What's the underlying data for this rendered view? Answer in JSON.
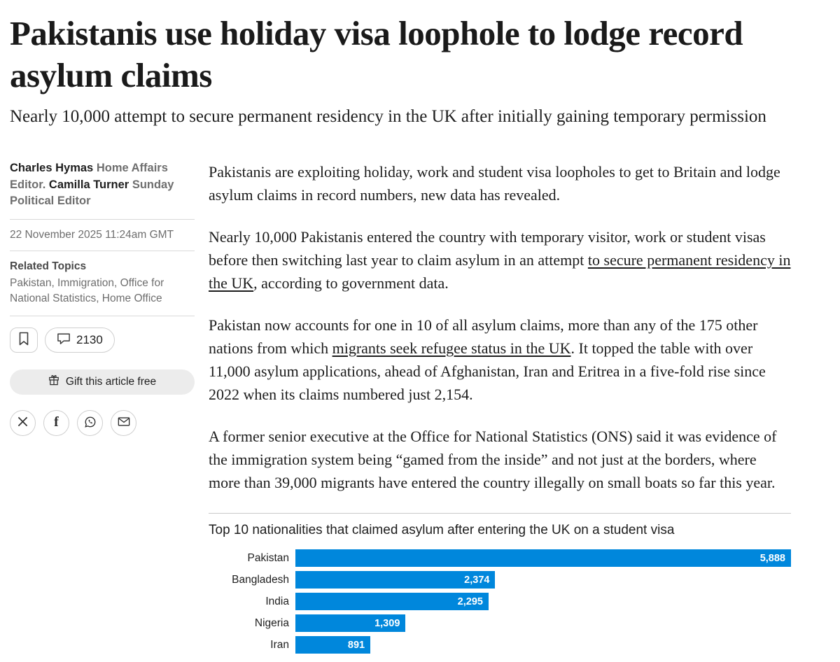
{
  "header": {
    "title": "Pakistanis use holiday visa loophole to lodge record asylum claims",
    "subtitle": "Nearly 10,000 attempt to secure permanent residency in the UK after initially gaining temporary permission"
  },
  "sidebar": {
    "byline": {
      "author1": "Charles Hymas",
      "role1": " Home Affairs Editor. ",
      "author2": "Camilla Turner",
      "role2": " Sunday Political Editor"
    },
    "date": "22 November 2025 11:24am GMT",
    "related_label": "Related Topics",
    "related_topics": "Pakistan, Immigration, Office for National Statistics, Home Office",
    "comments_count": "2130",
    "gift_label": "Gift this article free"
  },
  "article": {
    "p1": "Pakistanis are exploiting holiday, work and student visa loopholes to get to Britain and lodge asylum claims in record numbers, new data has revealed.",
    "p2_pre": "Nearly 10,000 Pakistanis entered the country with temporary visitor, work or student visas before then switching last year to claim asylum in an attempt ",
    "p2_link": "to secure permanent residency in the UK",
    "p2_post": ", according to government data.",
    "p3_pre": "Pakistan now accounts for one in 10 of all asylum claims, more than any of the 175 other nations from which ",
    "p3_link": "migrants seek refugee status in the UK",
    "p3_post": ". It topped the table with over 11,000 asylum applications, ahead of Afghanistan, Iran and Eritrea in a five-fold rise since 2022 when its claims numbered just 2,154.",
    "p4": "A former senior executive at the Office for National Statistics (ONS) said it was evidence of the immigration system being “gamed from the inside” and not just at the borders, where more than 39,000 migrants have entered the country illegally on small boats so far this year."
  },
  "chart_data": {
    "type": "bar",
    "orientation": "horizontal",
    "title": "Top 10 nationalities that claimed asylum after entering the UK on a student visa",
    "categories": [
      "Pakistan",
      "Bangladesh",
      "India",
      "Nigeria",
      "Iran"
    ],
    "values": [
      5888,
      2374,
      2295,
      1309,
      891
    ],
    "value_labels": [
      "5,888",
      "2,374",
      "2,295",
      "1,309",
      "891"
    ],
    "bar_color": "#0087dc",
    "xlim": [
      0,
      5888
    ],
    "grid": false,
    "legend": false
  }
}
